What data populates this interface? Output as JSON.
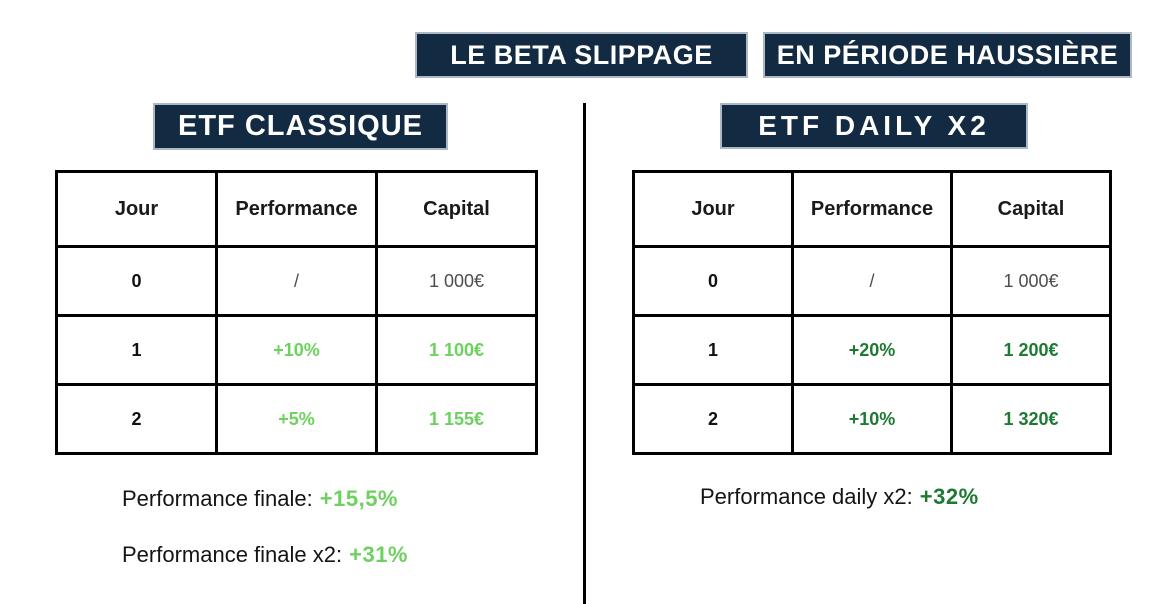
{
  "banners": {
    "main_left": "LE BETA SLIPPAGE",
    "main_right": "EN PÉRIODE HAUSSIÈRE"
  },
  "colors": {
    "navy": "#132A43",
    "green_light": "#6CD25D",
    "green_dark": "#1E7A33",
    "muted_text": "#4D4D4D",
    "border_black": "#000000"
  },
  "left_panel": {
    "title": "ETF CLASSIQUE",
    "table": {
      "columns": [
        "Jour",
        "Performance",
        "Capital"
      ],
      "rows": [
        {
          "jour": "0",
          "performance": "/",
          "capital": "1 000€"
        },
        {
          "jour": "1",
          "performance": "+10%",
          "capital": "1 100€"
        },
        {
          "jour": "2",
          "performance": "+5%",
          "capital": "1 155€"
        }
      ]
    },
    "captions": [
      {
        "label": "Performance finale:",
        "value": "+15,5%"
      },
      {
        "label": "Performance finale x2:",
        "value": "+31%"
      }
    ]
  },
  "right_panel": {
    "title": "ETF DAILY X2",
    "table": {
      "columns": [
        "Jour",
        "Performance",
        "Capital"
      ],
      "rows": [
        {
          "jour": "0",
          "performance": "/",
          "capital": "1 000€"
        },
        {
          "jour": "1",
          "performance": "+20%",
          "capital": "1 200€"
        },
        {
          "jour": "2",
          "performance": "+10%",
          "capital": "1 320€"
        }
      ]
    },
    "captions": [
      {
        "label": "Performance daily x2:",
        "value": "+32%"
      }
    ]
  },
  "chart_data": [
    {
      "type": "table",
      "title": "ETF CLASSIQUE",
      "columns": [
        "Jour",
        "Performance",
        "Capital"
      ],
      "rows": [
        [
          "0",
          "/",
          "1 000€"
        ],
        [
          "1",
          "+10%",
          "1 100€"
        ],
        [
          "2",
          "+5%",
          "1 155€"
        ]
      ],
      "annotations": [
        "Performance finale: +15,5%",
        "Performance finale x2: +31%"
      ]
    },
    {
      "type": "table",
      "title": "ETF DAILY X2",
      "columns": [
        "Jour",
        "Performance",
        "Capital"
      ],
      "rows": [
        [
          "0",
          "/",
          "1 000€"
        ],
        [
          "1",
          "+20%",
          "1 200€"
        ],
        [
          "2",
          "+10%",
          "1 320€"
        ]
      ],
      "annotations": [
        "Performance daily x2: +32%"
      ]
    }
  ]
}
